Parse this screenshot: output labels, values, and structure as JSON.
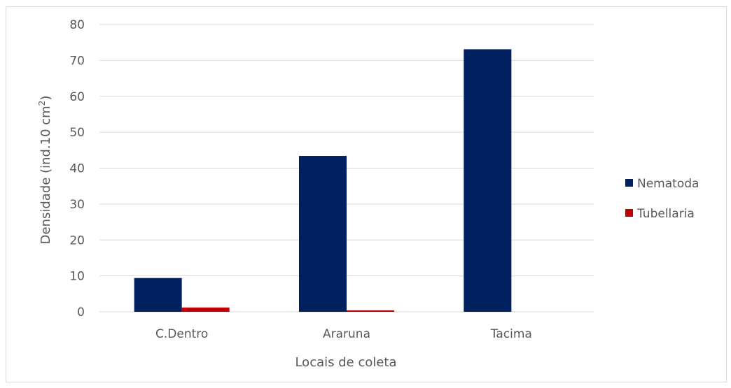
{
  "chart_data": {
    "type": "bar",
    "categories": [
      "C.Dentro",
      "Araruna",
      "Tacima"
    ],
    "series": [
      {
        "name": "Nematoda",
        "values": [
          9.4,
          43.4,
          73.1
        ],
        "color": "#002060"
      },
      {
        "name": "Tubellaria",
        "values": [
          1.2,
          0.4,
          0
        ],
        "color": "#c00000"
      }
    ],
    "xlabel": "Locais de coleta",
    "ylabel": "Densidade (ind.10 cm",
    "ylabel_superscript": "2",
    "ylabel_suffix": ")",
    "ylim": [
      0,
      80
    ],
    "yticks": [
      0,
      10,
      20,
      30,
      40,
      50,
      60,
      70,
      80
    ],
    "grid": true,
    "legend_position": "right"
  }
}
